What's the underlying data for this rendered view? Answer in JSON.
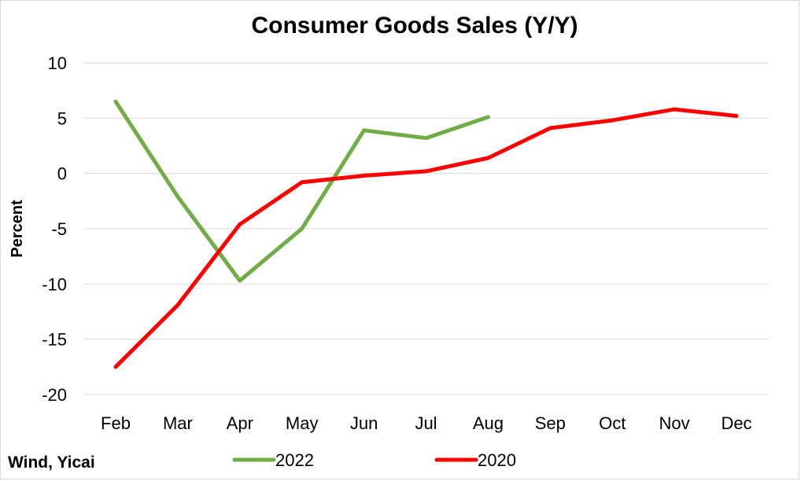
{
  "chart_data": {
    "type": "line",
    "title": "Consumer Goods Sales (Y/Y)",
    "ylabel": "Percent",
    "xlabel": "",
    "categories": [
      "Feb",
      "Mar",
      "Apr",
      "May",
      "Jun",
      "Jul",
      "Aug",
      "Sep",
      "Oct",
      "Nov",
      "Dec"
    ],
    "ylim": [
      -20,
      10
    ],
    "yticks": [
      10,
      5,
      0,
      -5,
      -10,
      -15,
      -20
    ],
    "grid": true,
    "legend_position": "bottom",
    "source": "Wind, Yicai",
    "series": [
      {
        "name": "2022",
        "color": "#70ad47",
        "values": [
          6.5,
          -2.1,
          -9.7,
          -5.0,
          3.9,
          3.2,
          5.1,
          null,
          null,
          null,
          null
        ]
      },
      {
        "name": "2020",
        "color": "#ff0000",
        "values": [
          -17.5,
          -11.9,
          -4.6,
          -0.8,
          -0.2,
          0.2,
          1.4,
          4.1,
          4.8,
          5.8,
          5.2
        ]
      }
    ]
  }
}
